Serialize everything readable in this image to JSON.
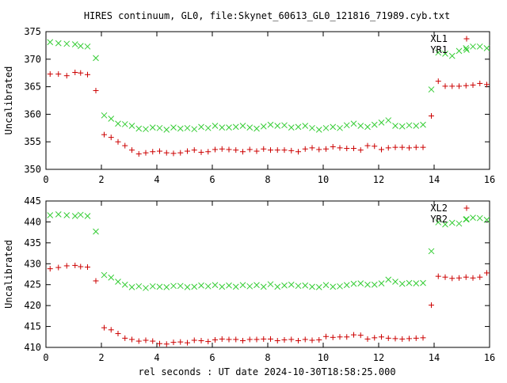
{
  "title": "HIRES continuum, GL0, file:Skynet_60613_GL0_121816_71989.cyb.txt",
  "xlabel": "rel seconds : UT date 2024-10-30T18:58:25.000",
  "colors": {
    "red": "#cc0000",
    "green": "#33cc33",
    "axis": "#000000"
  },
  "chart_data": [
    {
      "type": "scatter",
      "ylabel": "Uncalibrated",
      "xlim": [
        0,
        16
      ],
      "ylim": [
        350,
        375
      ],
      "xticks": [
        0,
        2,
        4,
        6,
        8,
        10,
        12,
        14,
        16
      ],
      "yticks": [
        350,
        355,
        360,
        365,
        370,
        375
      ],
      "legend_position": "top-right",
      "x": [
        0.15,
        0.45,
        0.75,
        1.05,
        1.25,
        1.5,
        1.8,
        2.1,
        2.35,
        2.6,
        2.85,
        3.1,
        3.35,
        3.6,
        3.85,
        4.1,
        4.35,
        4.6,
        4.85,
        5.1,
        5.35,
        5.6,
        5.85,
        6.1,
        6.35,
        6.6,
        6.85,
        7.1,
        7.35,
        7.6,
        7.85,
        8.1,
        8.35,
        8.6,
        8.85,
        9.1,
        9.35,
        9.6,
        9.85,
        10.1,
        10.35,
        10.6,
        10.85,
        11.1,
        11.35,
        11.6,
        11.85,
        12.1,
        12.35,
        12.6,
        12.85,
        13.1,
        13.35,
        13.6,
        13.9,
        14.15,
        14.4,
        14.65,
        14.9,
        15.15,
        15.4,
        15.65,
        15.9
      ],
      "series": [
        {
          "name": "XL1",
          "marker": "plus",
          "color": "#cc0000",
          "values": [
            367.3,
            367.3,
            367.0,
            367.6,
            367.5,
            367.2,
            364.3,
            356.3,
            355.8,
            355.0,
            354.3,
            353.5,
            352.8,
            353.0,
            353.2,
            353.3,
            353.0,
            352.9,
            353.0,
            353.3,
            353.5,
            353.1,
            353.2,
            353.6,
            353.7,
            353.6,
            353.5,
            353.2,
            353.6,
            353.3,
            353.7,
            353.5,
            353.5,
            353.5,
            353.4,
            353.2,
            353.7,
            353.9,
            353.6,
            353.7,
            354.1,
            353.9,
            353.8,
            353.8,
            353.5,
            354.3,
            354.2,
            353.6,
            353.9,
            354.0,
            354.0,
            353.9,
            354.0,
            354.0,
            359.7,
            366.0,
            365.1,
            365.1,
            365.1,
            365.2,
            365.3,
            365.6,
            365.4
          ]
        },
        {
          "name": "YR1",
          "marker": "cross",
          "color": "#33cc33",
          "values": [
            373.1,
            372.9,
            372.8,
            372.7,
            372.4,
            372.3,
            370.2,
            359.8,
            359.2,
            358.3,
            358.2,
            357.9,
            357.4,
            357.3,
            357.6,
            357.5,
            357.2,
            357.6,
            357.4,
            357.5,
            357.3,
            357.7,
            357.5,
            357.9,
            357.6,
            357.6,
            357.7,
            357.9,
            357.6,
            357.4,
            357.8,
            358.1,
            357.9,
            358.0,
            357.6,
            357.7,
            357.9,
            357.5,
            357.2,
            357.5,
            357.7,
            357.5,
            358.0,
            358.3,
            357.9,
            357.7,
            358.1,
            358.5,
            358.9,
            357.9,
            357.8,
            358.0,
            357.9,
            358.1,
            364.5,
            371.2,
            371.0,
            370.6,
            371.5,
            372.0,
            372.3,
            372.3,
            372.0
          ]
        }
      ]
    },
    {
      "type": "scatter",
      "ylabel": "Uncalibrated",
      "xlim": [
        0,
        16
      ],
      "ylim": [
        410,
        445
      ],
      "xticks": [
        0,
        2,
        4,
        6,
        8,
        10,
        12,
        14,
        16
      ],
      "yticks": [
        410,
        415,
        420,
        425,
        430,
        435,
        440,
        445
      ],
      "legend_position": "top-right",
      "x": [
        0.15,
        0.45,
        0.75,
        1.05,
        1.25,
        1.5,
        1.8,
        2.1,
        2.35,
        2.6,
        2.85,
        3.1,
        3.35,
        3.6,
        3.85,
        4.1,
        4.35,
        4.6,
        4.85,
        5.1,
        5.35,
        5.6,
        5.85,
        6.1,
        6.35,
        6.6,
        6.85,
        7.1,
        7.35,
        7.6,
        7.85,
        8.1,
        8.35,
        8.6,
        8.85,
        9.1,
        9.35,
        9.6,
        9.85,
        10.1,
        10.35,
        10.6,
        10.85,
        11.1,
        11.35,
        11.6,
        11.85,
        12.1,
        12.35,
        12.6,
        12.85,
        13.1,
        13.35,
        13.6,
        13.9,
        14.15,
        14.4,
        14.65,
        14.9,
        15.15,
        15.4,
        15.65,
        15.9
      ],
      "series": [
        {
          "name": "XL2",
          "marker": "plus",
          "color": "#cc0000",
          "values": [
            428.8,
            429.1,
            429.5,
            429.6,
            429.3,
            429.2,
            425.9,
            414.7,
            414.2,
            413.3,
            412.2,
            411.9,
            411.5,
            411.7,
            411.5,
            410.9,
            410.8,
            411.2,
            411.3,
            411.1,
            411.7,
            411.6,
            411.4,
            411.8,
            412.0,
            411.9,
            411.9,
            411.6,
            411.9,
            411.9,
            412.0,
            412.0,
            411.6,
            411.8,
            411.9,
            411.6,
            411.9,
            411.7,
            411.8,
            412.6,
            412.4,
            412.5,
            412.5,
            413.0,
            412.9,
            412.0,
            412.3,
            412.5,
            412.2,
            412.1,
            412.0,
            412.1,
            412.2,
            412.3,
            420.1,
            427.0,
            426.8,
            426.5,
            426.6,
            426.8,
            426.6,
            426.8,
            427.8
          ]
        },
        {
          "name": "YR2",
          "marker": "cross",
          "color": "#33cc33",
          "values": [
            441.6,
            441.8,
            441.6,
            441.4,
            441.7,
            441.4,
            437.7,
            427.3,
            426.7,
            425.7,
            425.0,
            424.4,
            424.6,
            424.2,
            424.6,
            424.5,
            424.4,
            424.7,
            424.7,
            424.4,
            424.5,
            424.8,
            424.6,
            424.9,
            424.5,
            424.8,
            424.5,
            424.9,
            424.6,
            424.9,
            424.5,
            425.1,
            424.5,
            424.8,
            425.0,
            424.7,
            424.8,
            424.5,
            424.4,
            424.9,
            424.5,
            424.6,
            424.9,
            425.2,
            425.3,
            425.0,
            425.0,
            425.3,
            426.2,
            425.7,
            425.2,
            425.4,
            425.3,
            425.4,
            433.0,
            439.9,
            439.4,
            439.8,
            439.6,
            440.6,
            441.0,
            440.9,
            440.5
          ]
        }
      ]
    }
  ]
}
